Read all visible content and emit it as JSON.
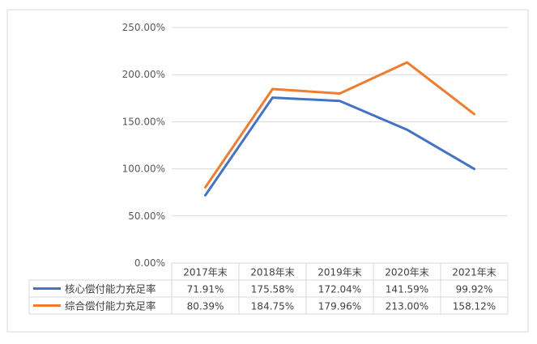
{
  "chart_data": {
    "type": "line",
    "categories": [
      "2017年末",
      "2018年末",
      "2019年末",
      "2020年末",
      "2021年末"
    ],
    "series": [
      {
        "name": "核心偿付能力充足率",
        "values": [
          71.91,
          175.58,
          172.04,
          141.59,
          99.92
        ],
        "labels": [
          "71.91%",
          "175.58%",
          "172.04%",
          "141.59%",
          "99.92%"
        ],
        "color": "#4472C4"
      },
      {
        "name": "综合偿付能力充足率",
        "values": [
          80.39,
          184.75,
          179.96,
          213.0,
          158.12
        ],
        "labels": [
          "80.39%",
          "184.75%",
          "179.96%",
          "213.00%",
          "158.12%"
        ],
        "color": "#ED7D31"
      }
    ],
    "yticks": [
      0,
      50,
      100,
      150,
      200,
      250
    ],
    "ytick_labels": [
      "0.00%",
      "50.00%",
      "100.00%",
      "150.00%",
      "200.00%",
      "250.00%"
    ],
    "ylim": [
      0,
      250
    ],
    "grid": true,
    "legend": "data-table-below"
  }
}
